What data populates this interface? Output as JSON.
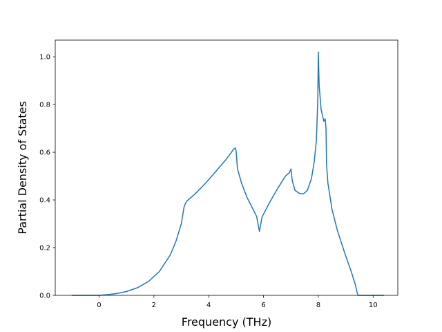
{
  "chart_data": {
    "type": "line",
    "title": "",
    "xlabel": "Frequency (THz)",
    "ylabel": "Partial Density of States",
    "xlim": [
      -1.6,
      10.9
    ],
    "ylim": [
      0.0,
      1.07
    ],
    "xticks": [
      "0",
      "2",
      "4",
      "6",
      "8",
      "10"
    ],
    "yticks": [
      "0.0",
      "0.2",
      "0.4",
      "0.6",
      "0.8",
      "1.0"
    ],
    "grid": false,
    "legend": "none",
    "line_color": "#1f77b4",
    "series": [
      {
        "x": [
          -1.0,
          -0.5,
          0.0,
          0.3,
          0.6,
          1.0,
          1.4,
          1.8,
          2.2,
          2.6,
          2.8,
          3.0,
          3.1,
          3.15,
          3.2,
          3.3,
          3.5,
          3.8,
          4.0,
          4.3,
          4.6,
          4.8,
          4.9,
          4.97,
          5.0,
          5.05,
          5.2,
          5.4,
          5.6,
          5.75,
          5.85,
          5.95,
          6.0,
          6.2,
          6.5,
          6.8,
          6.95,
          7.0,
          7.05,
          7.15,
          7.3,
          7.45,
          7.6,
          7.75,
          7.85,
          7.93,
          7.98,
          8.0,
          8.03,
          8.1,
          8.2,
          8.25,
          8.28,
          8.3,
          8.35,
          8.5,
          8.7,
          9.0,
          9.2,
          9.35,
          9.42,
          9.45,
          9.5,
          10.0,
          10.4
        ],
        "y": [
          0.0,
          0.0,
          0.0,
          0.003,
          0.007,
          0.016,
          0.032,
          0.058,
          0.1,
          0.17,
          0.225,
          0.3,
          0.37,
          0.385,
          0.395,
          0.405,
          0.425,
          0.46,
          0.485,
          0.525,
          0.565,
          0.595,
          0.612,
          0.618,
          0.605,
          0.53,
          0.47,
          0.41,
          0.365,
          0.33,
          0.268,
          0.33,
          0.34,
          0.385,
          0.445,
          0.5,
          0.515,
          0.53,
          0.48,
          0.44,
          0.428,
          0.425,
          0.44,
          0.49,
          0.56,
          0.65,
          0.82,
          1.02,
          0.88,
          0.78,
          0.73,
          0.74,
          0.7,
          0.55,
          0.47,
          0.36,
          0.27,
          0.165,
          0.1,
          0.045,
          0.01,
          0.0,
          0.0,
          0.0,
          0.0
        ]
      }
    ]
  }
}
